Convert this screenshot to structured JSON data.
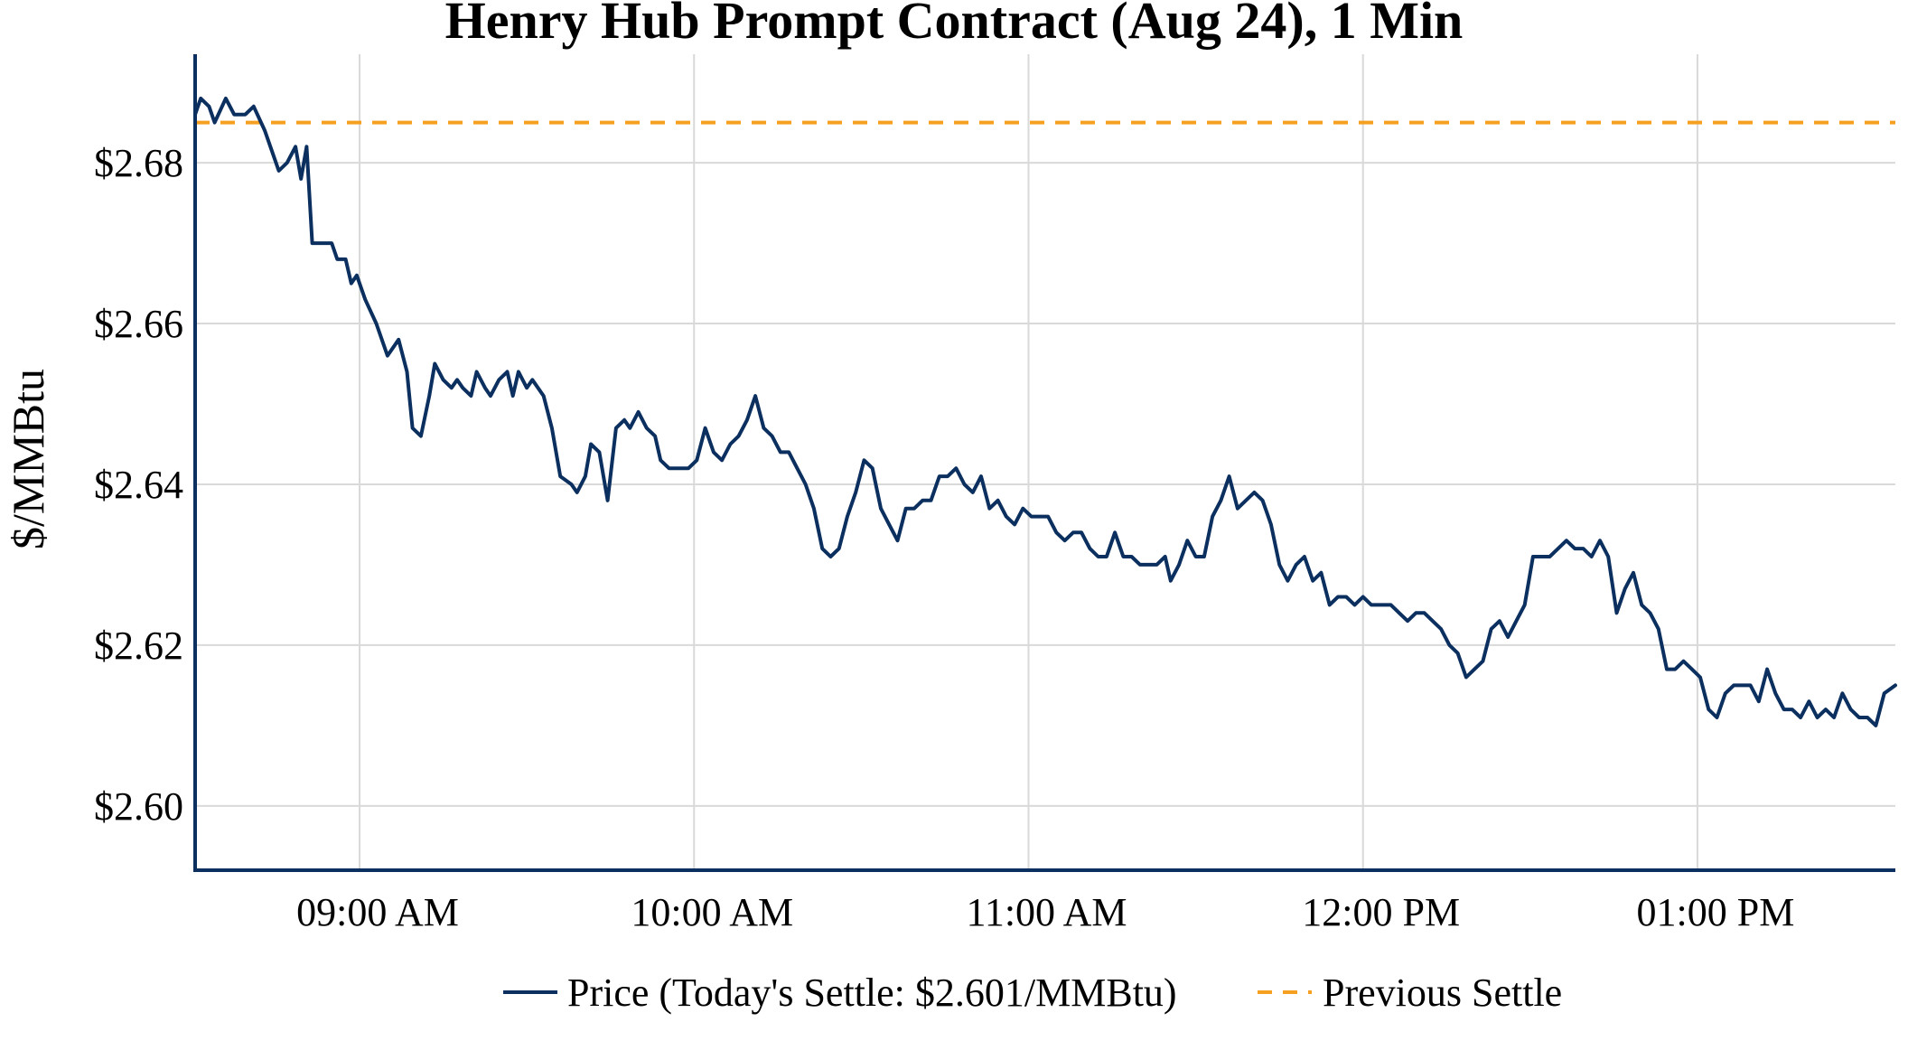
{
  "chart_data": {
    "type": "line",
    "title": "Henry Hub Prompt Contract (Aug 24), 1 Min",
    "xlabel": "",
    "ylabel": "$/MMBtu",
    "x_tick_labels": [
      "09:00 AM",
      "10:00 AM",
      "11:00 AM",
      "12:00 PM",
      "01:00 PM"
    ],
    "x_tick_minutes": [
      0,
      60,
      120,
      180,
      240
    ],
    "x_range_minutes": [
      -29.5,
      275.5
    ],
    "y_tick_labels": [
      "$2.60",
      "$2.62",
      "$2.64",
      "$2.66",
      "$2.68"
    ],
    "y_ticks": [
      2.6,
      2.62,
      2.64,
      2.66,
      2.68
    ],
    "ylim": [
      2.592,
      2.6935
    ],
    "grid": true,
    "legend_position": "bottom-center",
    "colors": {
      "price": "#0b2f5e",
      "previous_settle": "#f5a020",
      "grid": "#d9d9d9",
      "axis": "#0b2f5e"
    },
    "series": [
      {
        "name": "Price (Today's Settle: $2.601/MMBtu)",
        "style": "solid",
        "points": [
          [
            -29.5,
            2.686
          ],
          [
            -28.5,
            2.688
          ],
          [
            -27,
            2.687
          ],
          [
            -26,
            2.685
          ],
          [
            -24,
            2.688
          ],
          [
            -22.5,
            2.686
          ],
          [
            -20.5,
            2.686
          ],
          [
            -19,
            2.687
          ],
          [
            -17,
            2.684
          ],
          [
            -15.5,
            2.681
          ],
          [
            -14.5,
            2.679
          ],
          [
            -13,
            2.68
          ],
          [
            -11.5,
            2.682
          ],
          [
            -10.5,
            2.678
          ],
          [
            -9.5,
            2.682
          ],
          [
            -8.5,
            2.67
          ],
          [
            -6,
            2.67
          ],
          [
            -5,
            2.67
          ],
          [
            -4,
            2.668
          ],
          [
            -2.5,
            2.668
          ],
          [
            -1.5,
            2.665
          ],
          [
            -0.5,
            2.666
          ],
          [
            1,
            2.663
          ],
          [
            3,
            2.66
          ],
          [
            5,
            2.656
          ],
          [
            6,
            2.657
          ],
          [
            7,
            2.658
          ],
          [
            8.5,
            2.654
          ],
          [
            9.5,
            2.647
          ],
          [
            11,
            2.646
          ],
          [
            12.5,
            2.651
          ],
          [
            13.5,
            2.655
          ],
          [
            15,
            2.653
          ],
          [
            16.5,
            2.652
          ],
          [
            17.5,
            2.653
          ],
          [
            18.5,
            2.652
          ],
          [
            20,
            2.651
          ],
          [
            21,
            2.654
          ],
          [
            22.5,
            2.652
          ],
          [
            23.5,
            2.651
          ],
          [
            25,
            2.653
          ],
          [
            26.5,
            2.654
          ],
          [
            27.5,
            2.651
          ],
          [
            28.5,
            2.654
          ],
          [
            30,
            2.652
          ],
          [
            31,
            2.653
          ],
          [
            33,
            2.651
          ],
          [
            34.5,
            2.647
          ],
          [
            36,
            2.641
          ],
          [
            38,
            2.64
          ],
          [
            39,
            2.639
          ],
          [
            40.5,
            2.641
          ],
          [
            41.5,
            2.645
          ],
          [
            43,
            2.644
          ],
          [
            44.5,
            2.638
          ],
          [
            46,
            2.647
          ],
          [
            47.5,
            2.648
          ],
          [
            48.5,
            2.647
          ],
          [
            50,
            2.649
          ],
          [
            51.5,
            2.647
          ],
          [
            53,
            2.646
          ],
          [
            54,
            2.643
          ],
          [
            55.5,
            2.642
          ],
          [
            57,
            2.642
          ],
          [
            59,
            2.642
          ],
          [
            60.5,
            2.643
          ],
          [
            62,
            2.647
          ],
          [
            63.5,
            2.644
          ],
          [
            65,
            2.643
          ],
          [
            66.5,
            2.645
          ],
          [
            68,
            2.646
          ],
          [
            69.5,
            2.648
          ],
          [
            71,
            2.651
          ],
          [
            72.5,
            2.647
          ],
          [
            74,
            2.646
          ],
          [
            75.5,
            2.644
          ],
          [
            77,
            2.644
          ],
          [
            78.5,
            2.642
          ],
          [
            80,
            2.64
          ],
          [
            81.5,
            2.637
          ],
          [
            83,
            2.632
          ],
          [
            84.5,
            2.631
          ],
          [
            86,
            2.632
          ],
          [
            87.5,
            2.636
          ],
          [
            89,
            2.639
          ],
          [
            90.5,
            2.643
          ],
          [
            92,
            2.642
          ],
          [
            93.5,
            2.637
          ],
          [
            95,
            2.635
          ],
          [
            96.5,
            2.633
          ],
          [
            98,
            2.637
          ],
          [
            99.5,
            2.637
          ],
          [
            101,
            2.638
          ],
          [
            102.5,
            2.638
          ],
          [
            104,
            2.641
          ],
          [
            105.5,
            2.641
          ],
          [
            107,
            2.642
          ],
          [
            108.5,
            2.64
          ],
          [
            110,
            2.639
          ],
          [
            111.5,
            2.641
          ],
          [
            113,
            2.637
          ],
          [
            114.5,
            2.638
          ],
          [
            116,
            2.636
          ],
          [
            117.5,
            2.635
          ],
          [
            119,
            2.637
          ],
          [
            120.5,
            2.636
          ],
          [
            122,
            2.636
          ],
          [
            123.5,
            2.636
          ],
          [
            125,
            2.634
          ],
          [
            126.5,
            2.633
          ],
          [
            128,
            2.634
          ],
          [
            129.5,
            2.634
          ],
          [
            131,
            2.632
          ],
          [
            132.5,
            2.631
          ],
          [
            134,
            2.631
          ],
          [
            135.5,
            2.634
          ],
          [
            137,
            2.631
          ],
          [
            138.5,
            2.631
          ],
          [
            140,
            2.63
          ],
          [
            141.5,
            2.63
          ],
          [
            143,
            2.63
          ],
          [
            144.5,
            2.631
          ],
          [
            145.5,
            2.628
          ],
          [
            147,
            2.63
          ],
          [
            148.5,
            2.633
          ],
          [
            150,
            2.631
          ],
          [
            151.5,
            2.631
          ],
          [
            153,
            2.636
          ],
          [
            154.5,
            2.638
          ],
          [
            156,
            2.641
          ],
          [
            157.5,
            2.637
          ],
          [
            159,
            2.638
          ],
          [
            160.5,
            2.639
          ],
          [
            162,
            2.638
          ],
          [
            163.5,
            2.635
          ],
          [
            165,
            2.63
          ],
          [
            166.5,
            2.628
          ],
          [
            168,
            2.63
          ],
          [
            169.5,
            2.631
          ],
          [
            171,
            2.628
          ],
          [
            172.5,
            2.629
          ],
          [
            174,
            2.625
          ],
          [
            175.5,
            2.626
          ],
          [
            177,
            2.626
          ],
          [
            178.5,
            2.625
          ],
          [
            180,
            2.626
          ],
          [
            181.5,
            2.625
          ],
          [
            183,
            2.625
          ],
          [
            185,
            2.625
          ],
          [
            186.5,
            2.624
          ],
          [
            188,
            2.623
          ],
          [
            189.5,
            2.624
          ],
          [
            191,
            2.624
          ],
          [
            192.5,
            2.623
          ],
          [
            194,
            2.622
          ],
          [
            195.5,
            2.62
          ],
          [
            197,
            2.619
          ],
          [
            198.5,
            2.616
          ],
          [
            200,
            2.617
          ],
          [
            201.5,
            2.618
          ],
          [
            203,
            2.622
          ],
          [
            204.5,
            2.623
          ],
          [
            206,
            2.621
          ],
          [
            207.5,
            2.623
          ],
          [
            209,
            2.625
          ],
          [
            210.5,
            2.631
          ],
          [
            212,
            2.631
          ],
          [
            213.5,
            2.631
          ],
          [
            215,
            2.632
          ],
          [
            216.5,
            2.633
          ],
          [
            218,
            2.632
          ],
          [
            219.5,
            2.632
          ],
          [
            221,
            2.631
          ],
          [
            222.5,
            2.633
          ],
          [
            224,
            2.631
          ],
          [
            225.5,
            2.624
          ],
          [
            227,
            2.627
          ],
          [
            228.5,
            2.629
          ],
          [
            230,
            2.625
          ],
          [
            231.5,
            2.624
          ],
          [
            233,
            2.622
          ],
          [
            234.5,
            2.617
          ],
          [
            236,
            2.617
          ],
          [
            237.5,
            2.618
          ],
          [
            239,
            2.617
          ],
          [
            240.5,
            2.616
          ],
          [
            242,
            2.612
          ],
          [
            243.5,
            2.611
          ],
          [
            245,
            2.614
          ],
          [
            246.5,
            2.615
          ],
          [
            248,
            2.615
          ],
          [
            249.5,
            2.615
          ],
          [
            251,
            2.613
          ],
          [
            252.5,
            2.617
          ],
          [
            254,
            2.614
          ],
          [
            255.5,
            2.612
          ],
          [
            257,
            2.612
          ],
          [
            258.5,
            2.611
          ],
          [
            260,
            2.613
          ],
          [
            261.5,
            2.611
          ],
          [
            263,
            2.612
          ],
          [
            264.5,
            2.611
          ],
          [
            266,
            2.614
          ],
          [
            267.5,
            2.612
          ],
          [
            269,
            2.611
          ],
          [
            270.5,
            2.611
          ],
          [
            272,
            2.61
          ],
          [
            273.5,
            2.614
          ],
          [
            275.5,
            2.615
          ]
        ]
      },
      {
        "name": "Previous Settle",
        "style": "dashed",
        "value": 2.685
      }
    ]
  }
}
